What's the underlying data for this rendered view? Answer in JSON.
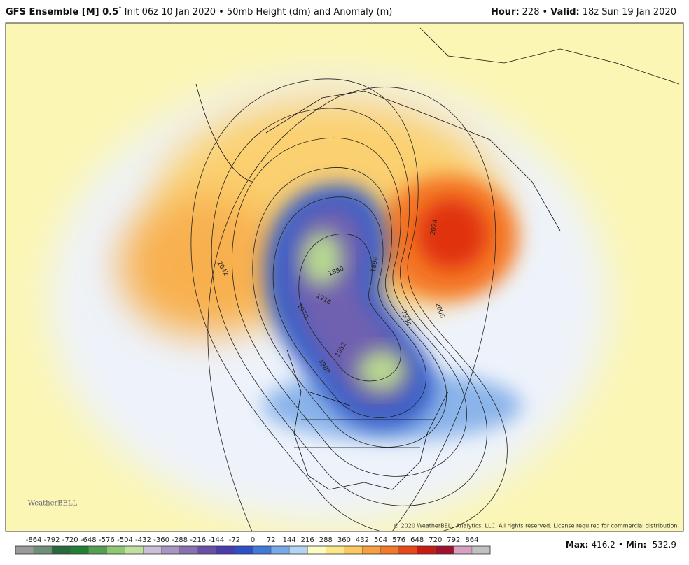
{
  "header": {
    "model": "GFS Ensemble [M] 0.5",
    "degree": "°",
    "description": "Init 06z 10 Jan 2020 • 50mb Height (dm) and Anomaly (m)",
    "hour_label": "Hour:",
    "hour": 228,
    "separator": "•",
    "valid_label": "Valid:",
    "valid": "18z Sun 19 Jan 2020"
  },
  "map": {
    "contour_labels": [
      1880,
      1916,
      1970,
      1988,
      1952,
      1934,
      2006,
      2042,
      2024,
      1898
    ],
    "logo": "WeatherBELL",
    "copyright": "© 2020 WeatherBELL Analytics, LLC. All rights reserved. License required for commercial distribution."
  },
  "colorbar": {
    "ticks": [
      -864,
      -792,
      -720,
      -648,
      -576,
      -504,
      -432,
      -360,
      -288,
      -216,
      -144,
      -72,
      0,
      72,
      144,
      216,
      288,
      360,
      432,
      504,
      576,
      648,
      720,
      792,
      864
    ],
    "colors": [
      "#9a9a9a",
      "#6f8f78",
      "#2a6a3a",
      "#1f7f35",
      "#52a050",
      "#8ec870",
      "#bfe0a0",
      "#c9bfd9",
      "#a795c4",
      "#8a70b0",
      "#6a4fa6",
      "#4b3cae",
      "#2f4fc6",
      "#3f7ad8",
      "#79a9e6",
      "#b4d4f4",
      "#fdfbc4",
      "#fbe88a",
      "#fcc860",
      "#f8a040",
      "#f47828",
      "#e84818",
      "#c81c10",
      "#a01030",
      "#d8a0c0",
      "#c0c0c0"
    ]
  },
  "stats": {
    "max_label": "Max:",
    "max": 416.2,
    "separator": "•",
    "min_label": "Min:",
    "min": -532.9
  }
}
